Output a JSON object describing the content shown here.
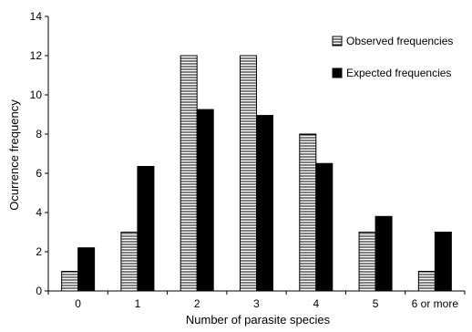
{
  "chart_data": {
    "type": "bar",
    "title": "",
    "xlabel": "Number of parasite species",
    "ylabel": "Ocurrence frequency",
    "categories": [
      "0",
      "1",
      "2",
      "3",
      "4",
      "5",
      "6 or more"
    ],
    "series": [
      {
        "name": "Observed frequencies",
        "values": [
          1,
          3,
          12,
          12,
          8,
          3,
          1
        ],
        "fill": "horizontal-hatch",
        "color": "#000000"
      },
      {
        "name": "Expected frequencies",
        "values": [
          2.2,
          6.35,
          9.25,
          8.95,
          6.5,
          3.8,
          3.0
        ],
        "fill": "solid",
        "color": "#000000"
      }
    ],
    "ylim": [
      0,
      14
    ],
    "yticks": [
      0,
      2,
      4,
      6,
      8,
      10,
      12,
      14
    ],
    "grid": false,
    "legend": "top-right"
  }
}
